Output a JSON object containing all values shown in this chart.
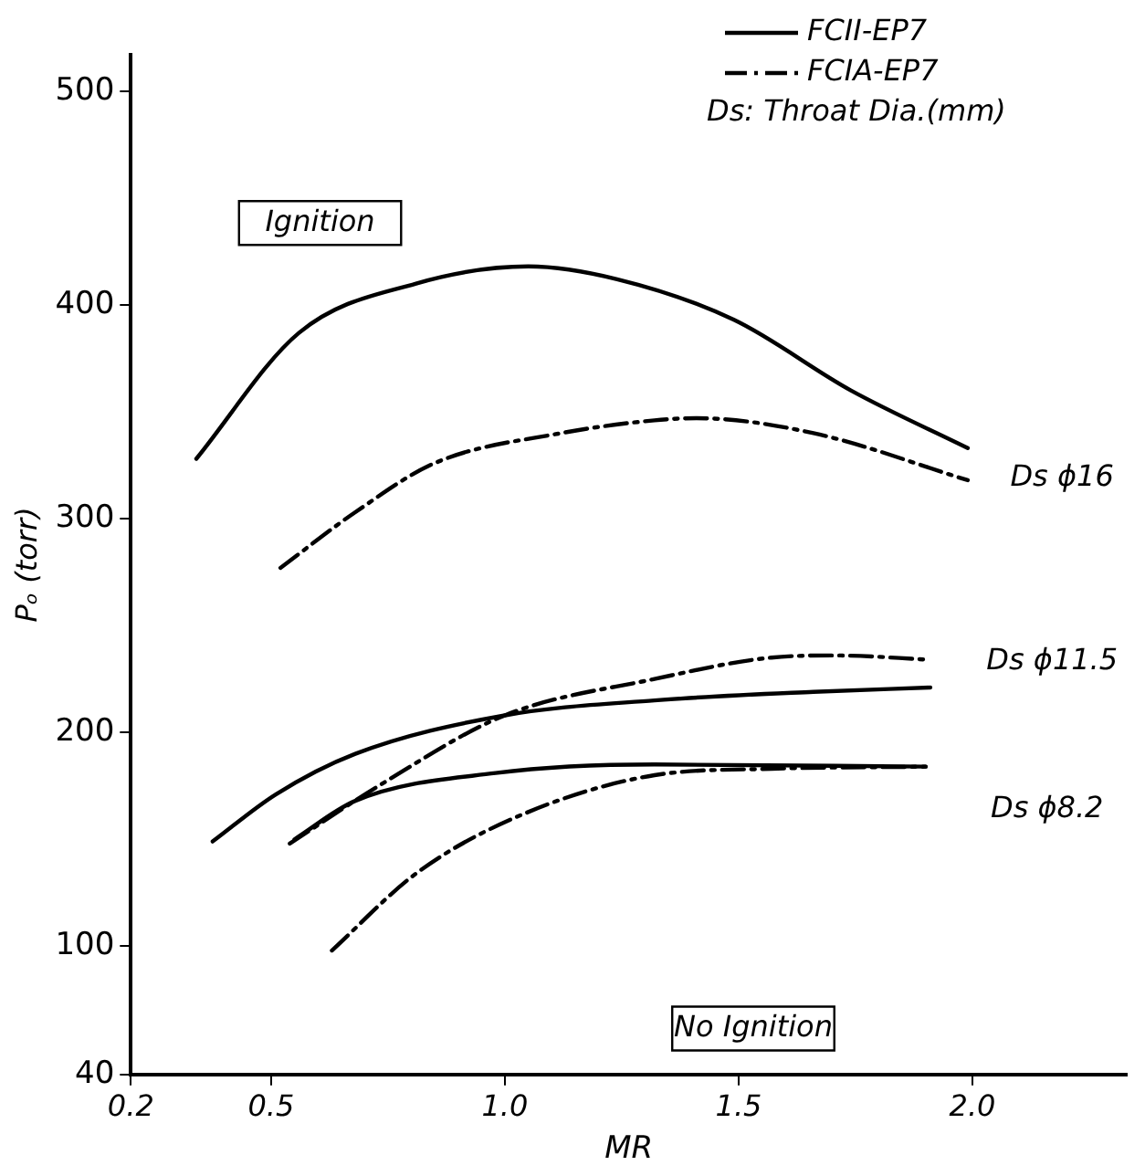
{
  "chart_data": {
    "type": "line",
    "xlabel": "MR",
    "ylabel": "Pₒ (torr)",
    "xlim": [
      0.2,
      2.33
    ],
    "xticks": [
      0.2,
      0.5,
      {
        "value": 1,
        "label": "1.0"
      },
      1.5,
      {
        "value": 2,
        "label": "2.0"
      }
    ],
    "ylim": [
      40,
      517
    ],
    "yticks": [
      40,
      100,
      200,
      300,
      400,
      500
    ],
    "grid": false,
    "legend": "top right",
    "marker": "none",
    "series": [
      {
        "name": "FCII-EP7",
        "color": "#000000",
        "line_style": "solid",
        "x": [
          0.34,
          0.56,
          0.81,
          1.05,
          1.24,
          1.49,
          1.74,
          1.99
        ],
        "values": [
          328,
          387,
          410,
          418,
          412,
          393,
          360,
          333
        ]
      },
      {
        "name": "FCIA-EP7",
        "color": "#000000",
        "line_style": "dashed",
        "x": [
          0.52,
          0.68,
          0.85,
          1.12,
          1.32,
          1.41,
          1.66,
          1.99
        ],
        "values": [
          277,
          303,
          326,
          340,
          346,
          347,
          340,
          318
        ]
      },
      {
        "color": "#000000",
        "line_style": "solid",
        "x": [
          0.375,
          0.51,
          0.68,
          1.0,
          1.32,
          1.66,
          1.91
        ],
        "values": [
          149,
          171,
          190,
          208,
          215,
          219,
          221
        ]
      },
      {
        "color": "#000000",
        "line_style": "dashed",
        "x": [
          0.54,
          0.73,
          1.0,
          1.32,
          1.57,
          1.71,
          1.91
        ],
        "values": [
          148,
          175,
          208,
          225,
          235,
          236,
          234
        ]
      },
      {
        "color": "#000000",
        "line_style": "solid",
        "x": [
          0.55,
          0.68,
          0.98,
          1.32,
          1.9
        ],
        "values": [
          150,
          168,
          181,
          185,
          184
        ]
      },
      {
        "color": "#000000",
        "line_style": "dashed",
        "x": [
          0.63,
          0.81,
          1.02,
          1.32,
          1.57,
          1.9
        ],
        "values": [
          98,
          134,
          160,
          180,
          183,
          184
        ]
      }
    ],
    "annotations": [
      "Ds: Throat Dia.(mm)",
      "Ds ϕ16",
      "Ds ϕ11.5",
      "Ds ϕ8.2",
      "Ignition",
      "No Ignition"
    ]
  }
}
